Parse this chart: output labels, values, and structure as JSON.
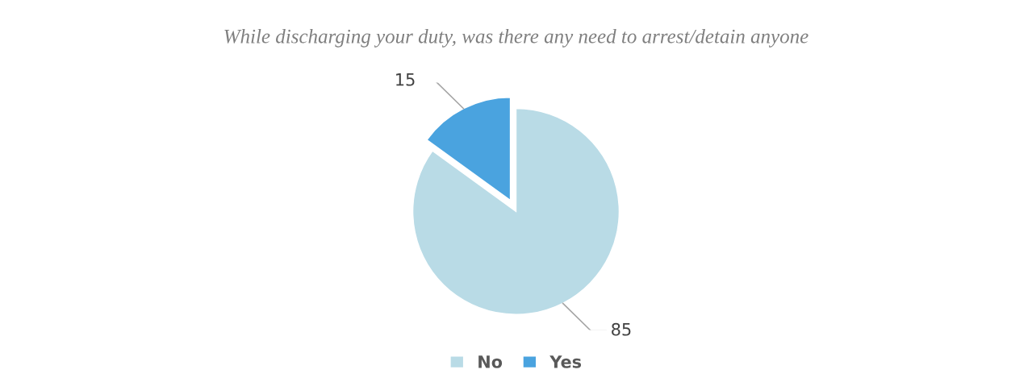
{
  "chart_data": {
    "type": "pie",
    "title": "While discharging your duty, was there any need to arrest/detain anyone",
    "categories": [
      "No",
      "Yes"
    ],
    "values": [
      85,
      15
    ],
    "colors": [
      "#b9dbe6",
      "#4aa3df"
    ],
    "data_labels": true,
    "legend": "bottom"
  }
}
